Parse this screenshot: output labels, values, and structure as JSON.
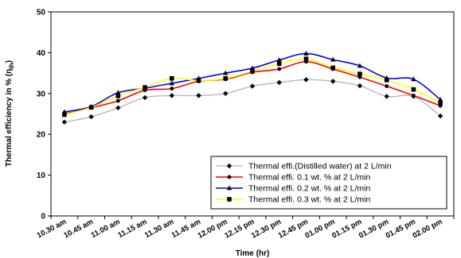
{
  "chart_data": {
    "type": "line",
    "xlabel": "Time (hr)",
    "ylabel": "Thermal efficiency in % (η",
    "ylabel_subscript": "th",
    "ylabel_close": ")",
    "ylim": [
      0,
      50
    ],
    "yticks": [
      0,
      10,
      20,
      30,
      40,
      50
    ],
    "grid": false,
    "legend_position": "bottom-right",
    "categories": [
      "10.30 am",
      "10.45 am",
      "11.00 am",
      "11.15 am",
      "11.30 am",
      "11.45 am",
      "12.00 pm",
      "12.15 pm",
      "12.30 pm",
      "12.45 pm",
      "01.00 pm",
      "01.15 pm",
      "01.30 pm",
      "01.45 pm",
      "02.00 pm"
    ],
    "series": [
      {
        "name": "Thermal effi.(Distilled water) at 2 L/min",
        "color": "#c0c0c0",
        "marker": "diamond",
        "values": [
          23.0,
          24.3,
          26.5,
          29.0,
          29.5,
          29.5,
          30.0,
          31.8,
          32.7,
          33.4,
          33.0,
          31.9,
          29.3,
          29.3,
          24.5
        ]
      },
      {
        "name": "Thermal effi. 0.1 wt. % at 2 L/min",
        "color": "#ff0000",
        "marker": "circle",
        "values": [
          25.0,
          26.5,
          28.2,
          30.8,
          31.2,
          33.0,
          33.5,
          35.2,
          36.0,
          37.8,
          36.0,
          34.0,
          31.8,
          29.5,
          27.0
        ]
      },
      {
        "name": "Thermal effi. 0.2 wt. % at 2 L/min",
        "color": "#0000ff",
        "marker": "triangle",
        "values": [
          25.5,
          26.8,
          30.2,
          31.3,
          32.5,
          33.7,
          35.0,
          36.2,
          38.2,
          39.8,
          38.3,
          36.8,
          33.8,
          33.5,
          28.5
        ]
      },
      {
        "name": "Thermal effi. 0.3 wt. % at 2 L/min",
        "color": "#ffff00",
        "marker": "square",
        "values": [
          24.8,
          26.6,
          29.4,
          31.5,
          33.7,
          33.2,
          33.7,
          35.5,
          37.3,
          38.5,
          36.3,
          34.8,
          33.3,
          31.0,
          27.7
        ]
      }
    ]
  }
}
